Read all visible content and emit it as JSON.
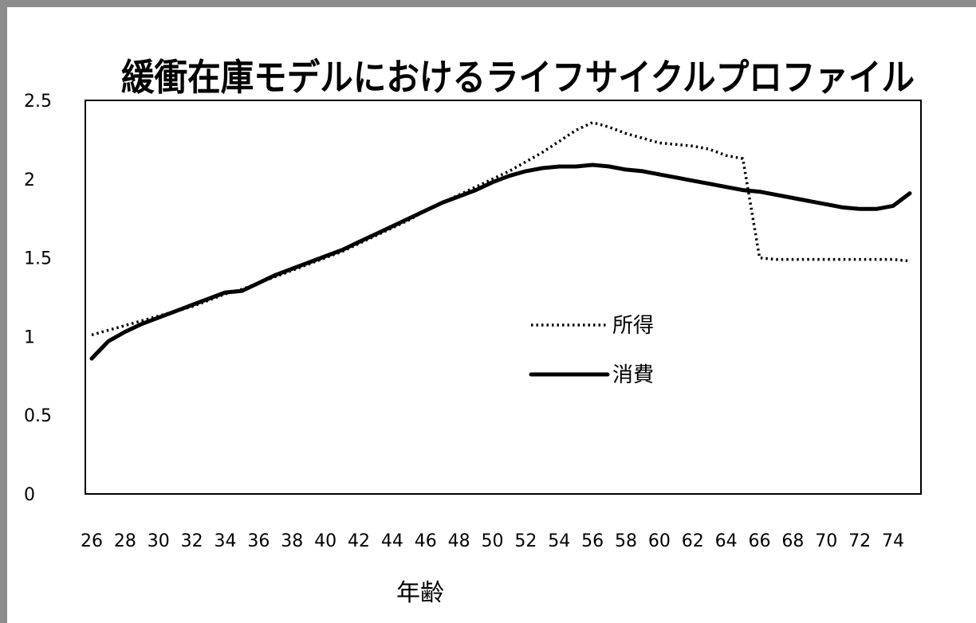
{
  "chart_data": {
    "type": "line",
    "title": "緩衝在庫モデルにおけるライフサイクルプロファイル",
    "xlabel": "年齢",
    "ylabel": "",
    "x": [
      26,
      27,
      28,
      29,
      30,
      31,
      32,
      33,
      34,
      35,
      36,
      37,
      38,
      39,
      40,
      41,
      42,
      43,
      44,
      45,
      46,
      47,
      48,
      49,
      50,
      51,
      52,
      53,
      54,
      55,
      56,
      57,
      58,
      59,
      60,
      61,
      62,
      63,
      64,
      65,
      66,
      67,
      68,
      69,
      70,
      71,
      72,
      73,
      74,
      75
    ],
    "x_ticks": [
      26,
      28,
      30,
      32,
      34,
      36,
      38,
      40,
      42,
      44,
      46,
      48,
      50,
      52,
      54,
      56,
      58,
      60,
      62,
      64,
      66,
      68,
      70,
      72,
      74
    ],
    "x_tick_labels": [
      "26",
      "28",
      "30",
      "32",
      "34",
      "36",
      "38",
      "40",
      "42",
      "44",
      "46",
      "48",
      "50",
      "52",
      "54",
      "56",
      "58",
      "60",
      "62",
      "64",
      "66",
      "68",
      "70",
      "72",
      "74"
    ],
    "ylim": [
      0,
      2.5
    ],
    "y_ticks": [
      0,
      0.5,
      1,
      1.5,
      2,
      2.5
    ],
    "y_tick_labels": [
      "0",
      "0.5",
      "1",
      "1.5",
      "2",
      "2.5"
    ],
    "grid": false,
    "legend_position": "center-right",
    "series": [
      {
        "name": "所得",
        "style": "dotted",
        "color": "#000000",
        "values": [
          1.01,
          1.04,
          1.07,
          1.1,
          1.13,
          1.16,
          1.19,
          1.23,
          1.27,
          1.3,
          1.34,
          1.38,
          1.42,
          1.46,
          1.5,
          1.54,
          1.59,
          1.64,
          1.69,
          1.74,
          1.8,
          1.85,
          1.9,
          1.95,
          2.0,
          2.05,
          2.11,
          2.17,
          2.24,
          2.31,
          2.36,
          2.33,
          2.29,
          2.26,
          2.23,
          2.22,
          2.21,
          2.19,
          2.15,
          2.13,
          1.5,
          1.49,
          1.49,
          1.49,
          1.49,
          1.49,
          1.49,
          1.49,
          1.49,
          1.48
        ]
      },
      {
        "name": "消費",
        "style": "solid",
        "color": "#000000",
        "values": [
          0.86,
          0.97,
          1.03,
          1.08,
          1.12,
          1.16,
          1.2,
          1.24,
          1.28,
          1.29,
          1.34,
          1.39,
          1.43,
          1.47,
          1.51,
          1.55,
          1.6,
          1.65,
          1.7,
          1.75,
          1.8,
          1.85,
          1.89,
          1.93,
          1.98,
          2.02,
          2.05,
          2.07,
          2.08,
          2.08,
          2.09,
          2.08,
          2.06,
          2.05,
          2.03,
          2.01,
          1.99,
          1.97,
          1.95,
          1.93,
          1.92,
          1.9,
          1.88,
          1.86,
          1.84,
          1.82,
          1.81,
          1.81,
          1.83,
          1.91
        ]
      }
    ]
  }
}
